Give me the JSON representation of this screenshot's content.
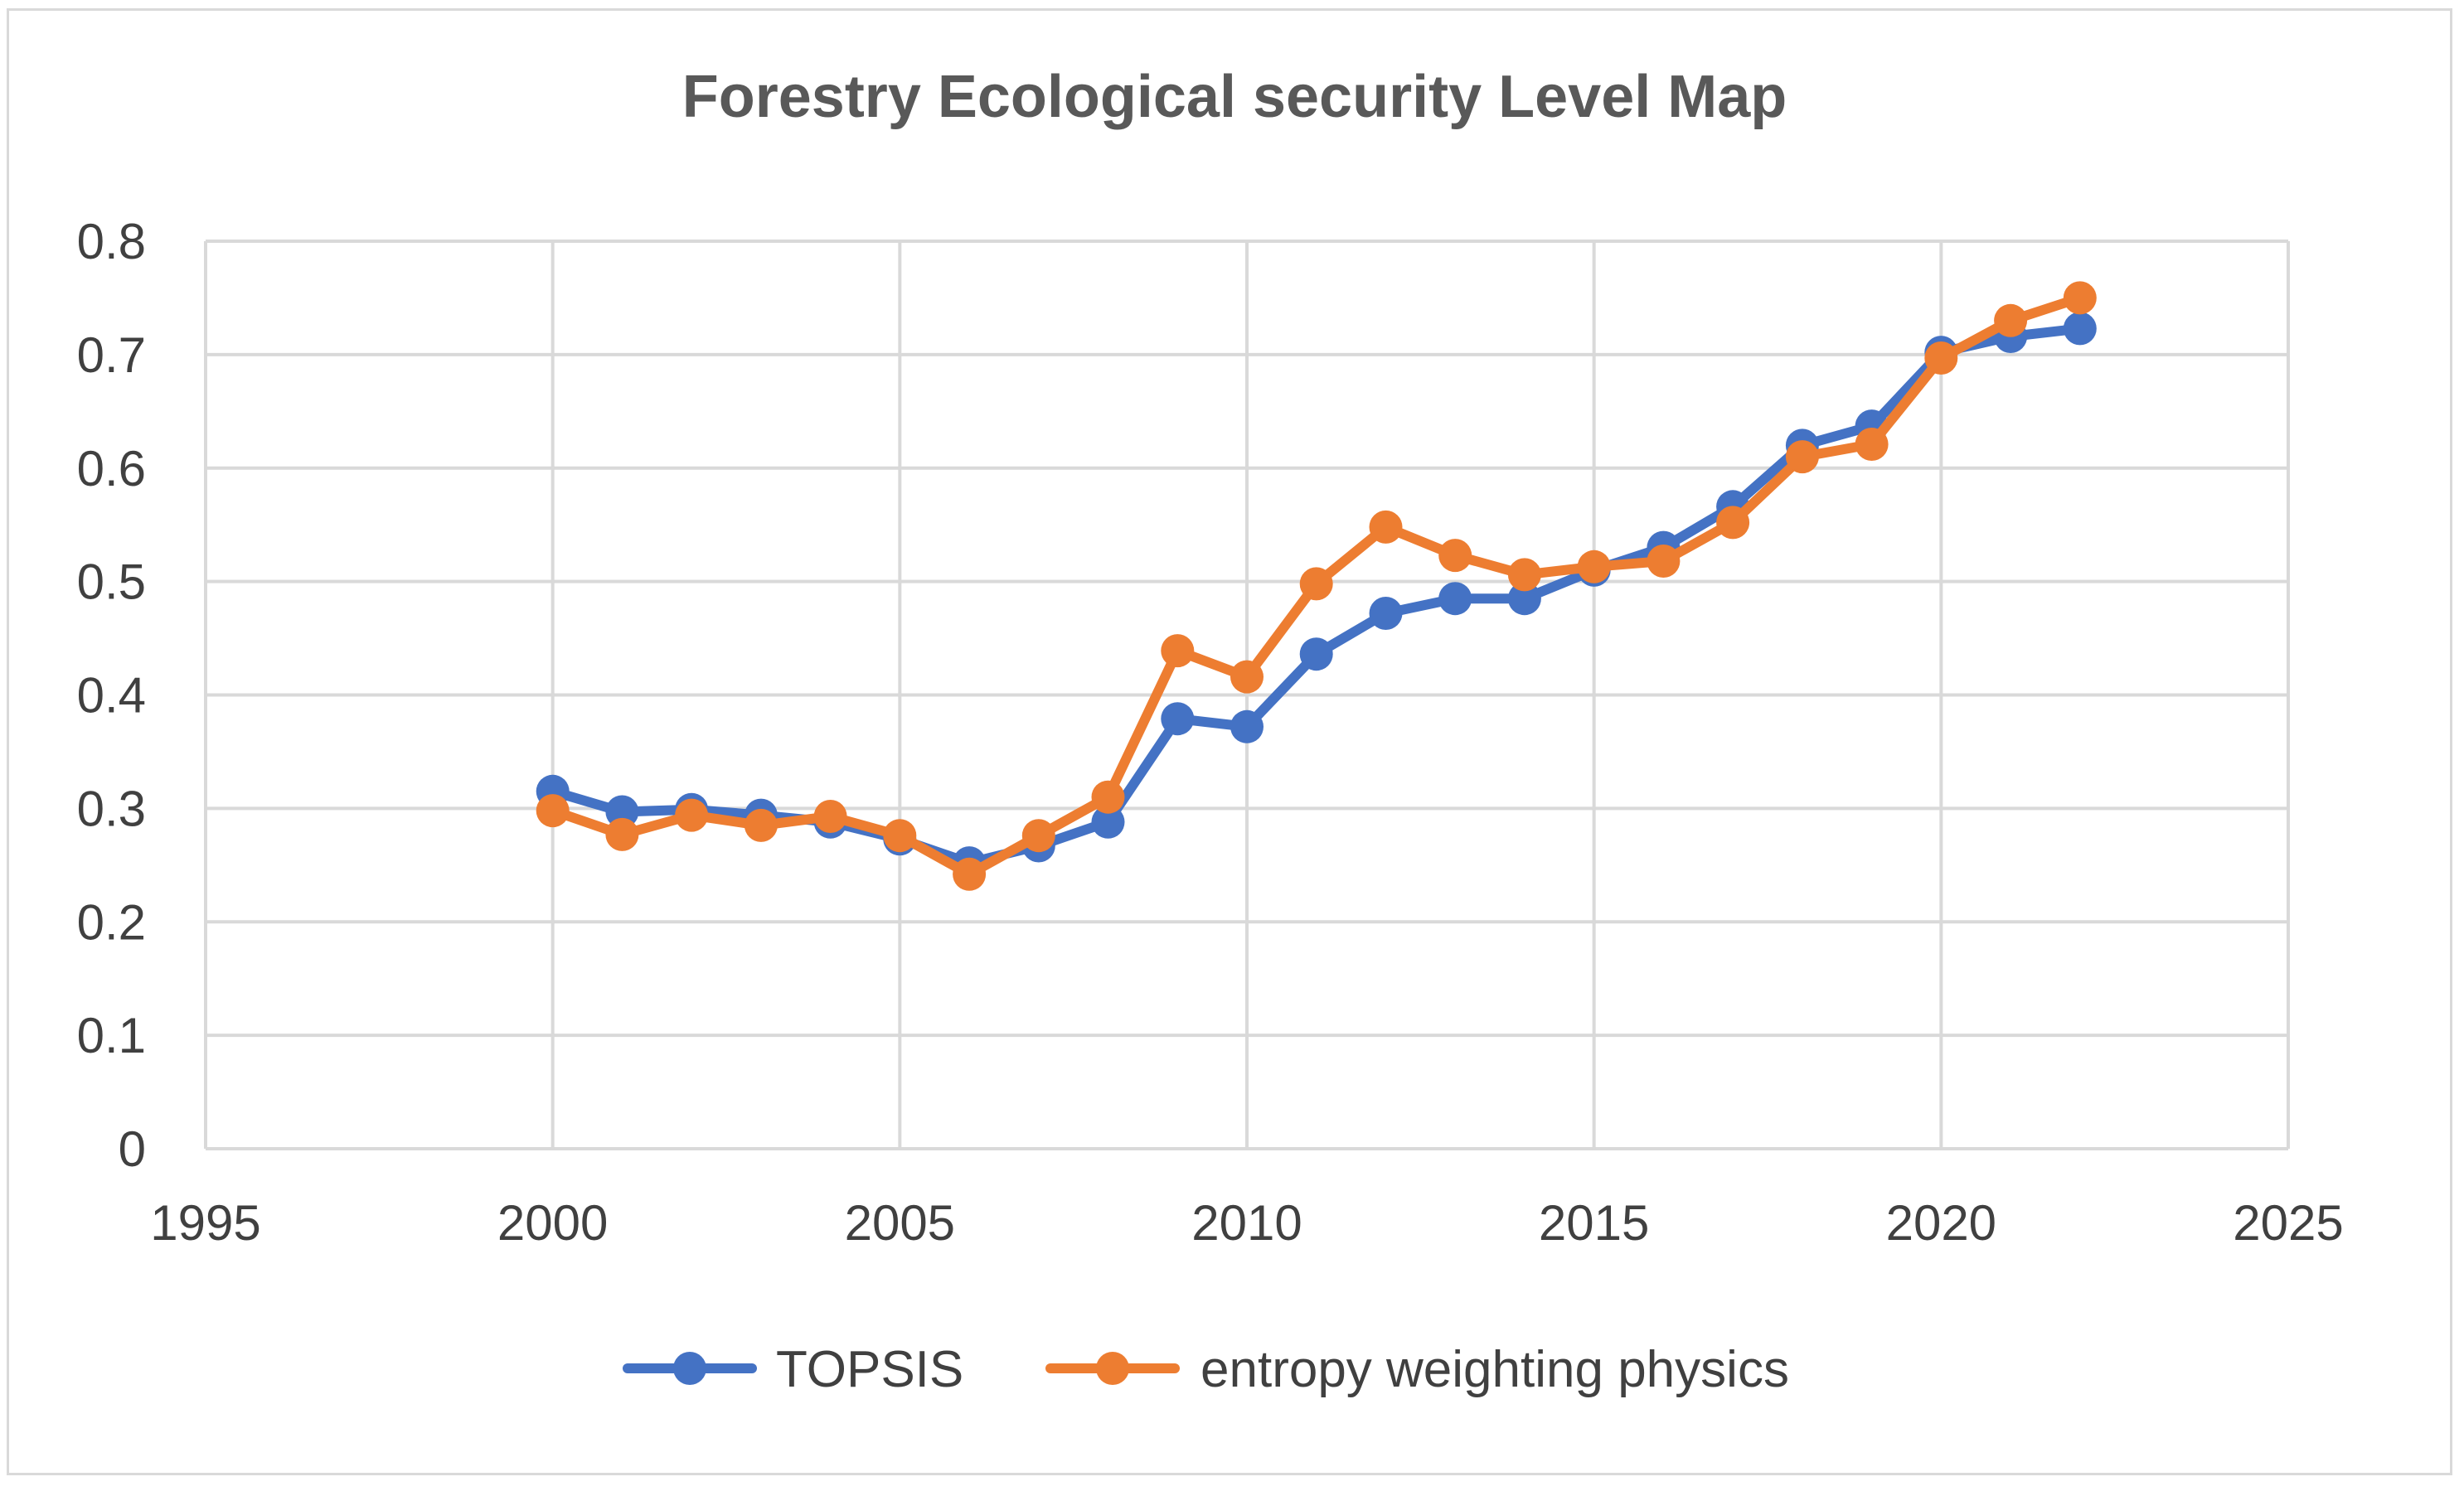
{
  "chart_data": {
    "type": "scatter",
    "title": "Forestry Ecological security Level Map",
    "xlabel": "",
    "ylabel": "",
    "xlim": [
      1995,
      2025
    ],
    "ylim": [
      0,
      0.8
    ],
    "x_ticks": [
      1995,
      2000,
      2005,
      2010,
      2015,
      2020,
      2025
    ],
    "x_tick_labels": [
      "1995",
      "2000",
      "2005",
      "2010",
      "2015",
      "2020",
      "2025"
    ],
    "y_ticks": [
      0,
      0.1,
      0.2,
      0.3,
      0.4,
      0.5,
      0.6,
      0.7,
      0.8
    ],
    "y_tick_labels": [
      "0",
      "0.1",
      "0.2",
      "0.3",
      "0.4",
      "0.5",
      "0.6",
      "0.7",
      "0.8"
    ],
    "grid": true,
    "legend_position": "bottom",
    "x": [
      2000,
      2001,
      2002,
      2003,
      2004,
      2005,
      2006,
      2007,
      2008,
      2009,
      2010,
      2011,
      2012,
      2013,
      2014,
      2015,
      2016,
      2017,
      2018,
      2019,
      2020,
      2021,
      2022
    ],
    "series": [
      {
        "name": "TOPSIS",
        "color": "#4472c4",
        "values": [
          0.315,
          0.297,
          0.299,
          0.294,
          0.288,
          0.273,
          0.252,
          0.267,
          0.288,
          0.379,
          0.372,
          0.436,
          0.472,
          0.485,
          0.485,
          0.51,
          0.53,
          0.566,
          0.62,
          0.637,
          0.702,
          0.716,
          0.723
        ]
      },
      {
        "name": "entropy weighting physics",
        "color": "#ed7d31",
        "values": [
          0.298,
          0.277,
          0.294,
          0.285,
          0.293,
          0.276,
          0.242,
          0.276,
          0.31,
          0.439,
          0.416,
          0.498,
          0.548,
          0.523,
          0.506,
          0.513,
          0.518,
          0.552,
          0.61,
          0.621,
          0.697,
          0.73,
          0.75
        ]
      }
    ]
  }
}
